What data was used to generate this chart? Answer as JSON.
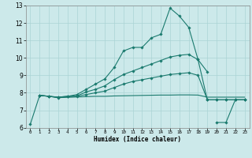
{
  "xlabel": "Humidex (Indice chaleur)",
  "bg_color": "#cce9ea",
  "grid_color": "#aad4d5",
  "line_color": "#1a7a6e",
  "xlim": [
    -0.5,
    23.5
  ],
  "ylim": [
    6,
    13
  ],
  "x_ticks": [
    0,
    1,
    2,
    3,
    4,
    5,
    6,
    7,
    8,
    9,
    10,
    11,
    12,
    13,
    14,
    15,
    16,
    17,
    18,
    19,
    20,
    21,
    22,
    23
  ],
  "y_ticks": [
    6,
    7,
    8,
    9,
    10,
    11,
    12,
    13
  ],
  "series1_x": [
    0,
    1,
    2,
    3,
    4,
    5,
    6,
    7,
    8,
    9,
    10,
    11,
    12,
    13,
    14,
    15,
    16,
    17,
    18,
    19
  ],
  "series1_y": [
    6.2,
    7.85,
    7.8,
    7.75,
    7.8,
    7.9,
    8.2,
    8.5,
    8.8,
    9.45,
    10.4,
    10.6,
    10.6,
    11.15,
    11.35,
    12.85,
    12.4,
    11.75,
    9.9,
    9.2
  ],
  "series2_x": [
    1,
    2,
    3,
    4,
    5,
    6,
    7,
    8,
    9,
    10,
    11,
    12,
    13,
    14,
    15,
    16,
    17,
    18,
    19,
    20,
    21,
    22,
    23
  ],
  "series2_y": [
    7.85,
    7.8,
    7.75,
    7.8,
    7.82,
    8.05,
    8.2,
    8.4,
    8.75,
    9.05,
    9.25,
    9.45,
    9.65,
    9.85,
    10.05,
    10.15,
    10.2,
    9.9,
    7.6,
    7.6,
    7.6,
    7.6,
    7.6
  ],
  "series3_x": [
    1,
    2,
    3,
    4,
    5,
    6,
    7,
    8,
    9,
    10,
    11,
    12,
    13,
    14,
    15,
    16,
    17,
    18,
    19,
    20,
    21,
    22,
    23
  ],
  "series3_y": [
    7.85,
    7.8,
    7.72,
    7.78,
    7.8,
    7.9,
    8.0,
    8.1,
    8.3,
    8.5,
    8.65,
    8.75,
    8.85,
    8.95,
    9.05,
    9.1,
    9.15,
    9.0,
    7.6,
    7.6,
    7.6,
    7.6,
    7.6
  ],
  "series4_x": [
    1,
    2,
    3,
    4,
    5,
    6,
    7,
    8,
    9,
    10,
    11,
    12,
    13,
    14,
    15,
    16,
    17,
    18,
    19,
    20,
    21,
    22,
    23
  ],
  "series4_y": [
    7.85,
    7.8,
    7.72,
    7.74,
    7.76,
    7.78,
    7.8,
    7.8,
    7.82,
    7.83,
    7.84,
    7.85,
    7.86,
    7.87,
    7.87,
    7.88,
    7.88,
    7.87,
    7.75,
    7.75,
    7.75,
    7.75,
    7.75
  ],
  "series5_x": [
    20,
    21,
    22,
    23
  ],
  "series5_y": [
    6.3,
    6.3,
    7.6,
    7.6
  ]
}
